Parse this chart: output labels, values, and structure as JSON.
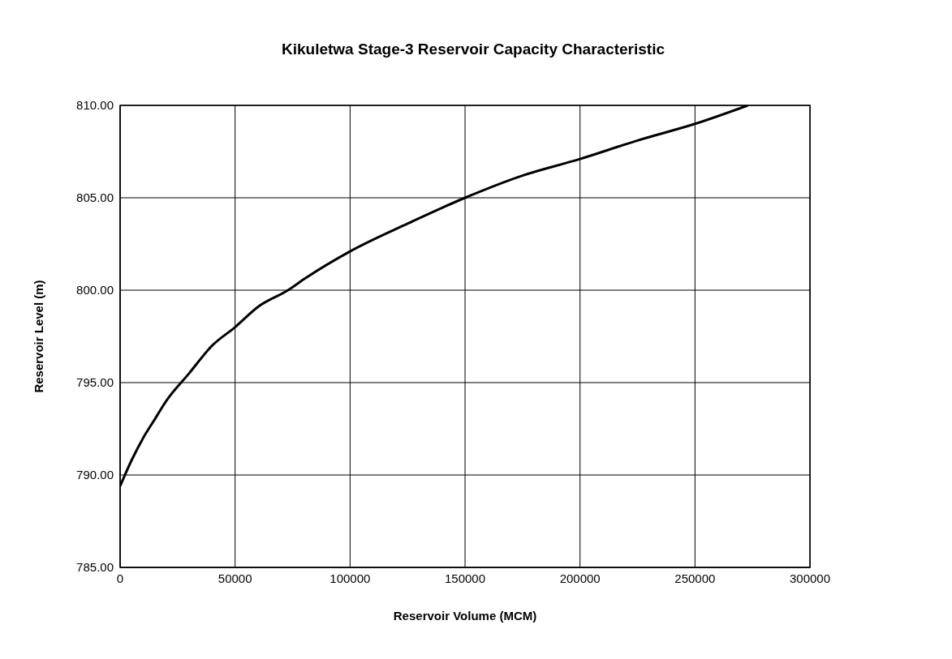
{
  "chart_data": {
    "type": "line",
    "title": "Kikuletwa Stage-3 Reservoir Capacity Characteristic",
    "xlabel": "Reservoir Volume (MCM)",
    "ylabel": "Reservoir Level (m)",
    "x": [
      0,
      5000,
      10000,
      15000,
      20000,
      30000,
      40000,
      50000,
      60000,
      73000,
      80000,
      100000,
      125000,
      150000,
      175000,
      200000,
      225000,
      250000,
      273000
    ],
    "series": [
      {
        "color": "#000000",
        "values": [
          789.4,
          790.8,
          792,
          793,
          794,
          795.5,
          797,
          798,
          799.1,
          800,
          800.6,
          802.1,
          803.6,
          805,
          806.2,
          807.1,
          808.1,
          809,
          810
        ]
      }
    ],
    "xlim": [
      0,
      300000
    ],
    "xticks": [
      0,
      50000,
      100000,
      150000,
      200000,
      250000,
      300000
    ],
    "ylim": [
      785,
      810
    ],
    "yticks": [
      {
        "value": 785,
        "label": "785.00"
      },
      {
        "value": 790,
        "label": "790.00"
      },
      {
        "value": 795,
        "label": "795.00"
      },
      {
        "value": 800,
        "label": "800.00"
      },
      {
        "value": 805,
        "label": "805.00"
      },
      {
        "value": 810,
        "label": "810.00"
      }
    ],
    "grid": true,
    "marker": "none",
    "line_style": "solid",
    "legend": false
  }
}
